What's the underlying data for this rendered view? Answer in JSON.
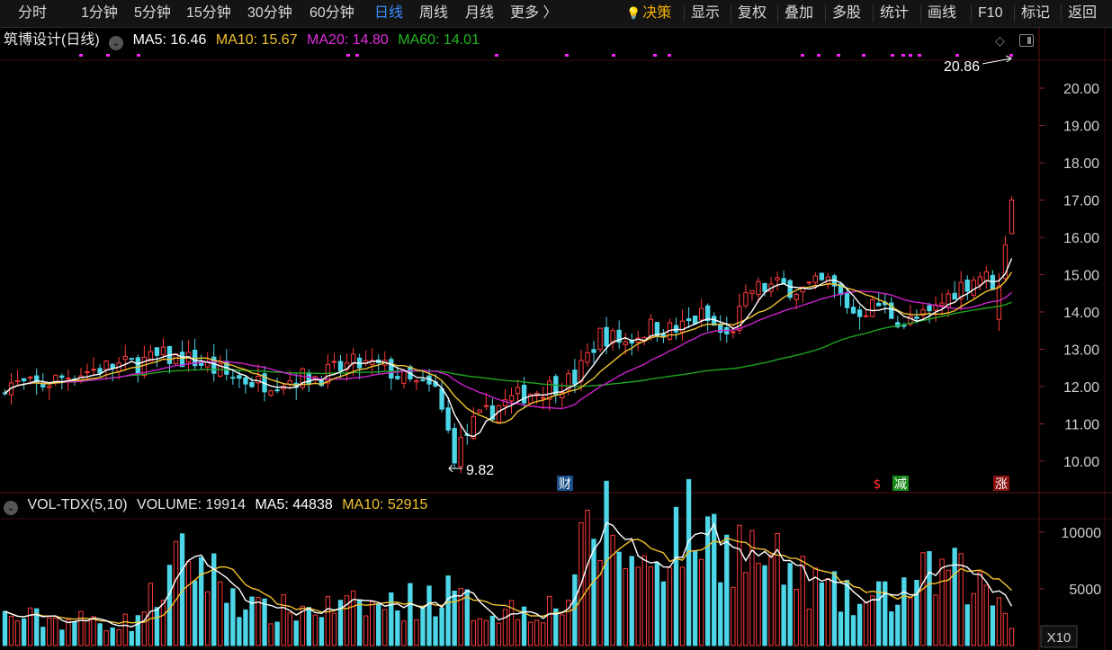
{
  "toolbar": {
    "left": [
      {
        "name": "tab-fenshi",
        "label": "分时"
      },
      {
        "name": "tab-1min",
        "label": "1分钟"
      },
      {
        "name": "tab-5min",
        "label": "5分钟"
      },
      {
        "name": "tab-15min",
        "label": "15分钟"
      },
      {
        "name": "tab-30min",
        "label": "30分钟"
      },
      {
        "name": "tab-60min",
        "label": "60分钟"
      },
      {
        "name": "tab-daily",
        "label": "日线",
        "active": true
      },
      {
        "name": "tab-weekly",
        "label": "周线"
      },
      {
        "name": "tab-monthly",
        "label": "月线"
      },
      {
        "name": "tab-more",
        "label": "更多 〉"
      }
    ],
    "right": [
      {
        "name": "decision-button",
        "label": "决策",
        "accent": true
      },
      {
        "name": "display-button",
        "label": "显示"
      },
      {
        "name": "adjust-button",
        "label": "复权"
      },
      {
        "name": "overlay-button",
        "label": "叠加"
      },
      {
        "name": "multi-stock-button",
        "label": "多股"
      },
      {
        "name": "stats-button",
        "label": "统计"
      },
      {
        "name": "draw-button",
        "label": "画线"
      },
      {
        "name": "f10-button",
        "label": "F10"
      },
      {
        "name": "mark-button",
        "label": "标记"
      },
      {
        "name": "back-button",
        "label": "返回"
      }
    ]
  },
  "price_legend": {
    "stock": "筑博设计(日线)",
    "ma5": "MA5: 16.46",
    "ma10": "MA10: 15.67",
    "ma20": "MA20: 14.80",
    "ma60": "MA60: 14.01"
  },
  "volume_legend": {
    "indicator": "VOL-TDX(5,10)",
    "volume": "VOLUME: 19914",
    "ma5": "MA5: 44838",
    "ma10": "MA10: 52915"
  },
  "colors": {
    "up": "#ff3b3b",
    "down": "#4dd6e8",
    "ma5": "#ffffff",
    "ma10": "#f2c230",
    "ma20": "#cc22cc",
    "ma60": "#1fa41f",
    "grid": "#3a1010",
    "axis_text": "#d0d0d0",
    "marker": "#ff22ff"
  },
  "chart_data": {
    "type": "candlestick",
    "price_axis": {
      "ticks": [
        "20.00",
        "19.00",
        "18.00",
        "17.00",
        "16.00",
        "15.00",
        "14.00",
        "13.00",
        "12.00",
        "11.00",
        "10.00"
      ],
      "range": [
        9.5,
        21.2
      ]
    },
    "volume_axis": {
      "ticks": [
        "10000",
        "5000"
      ],
      "range": [
        0,
        12000
      ],
      "unit_label": "X10"
    },
    "annotations": {
      "high": "20.86",
      "low": "9.82",
      "events": [
        "财",
        "$",
        "减",
        "涨"
      ]
    },
    "keyframes": [
      {
        "i": 0,
        "c": 12.1
      },
      {
        "i": 5,
        "c": 12.0
      },
      {
        "i": 10,
        "c": 12.3
      },
      {
        "i": 15,
        "c": 12.5
      },
      {
        "i": 20,
        "c": 12.6
      },
      {
        "i": 25,
        "c": 12.8
      },
      {
        "i": 30,
        "c": 12.7
      },
      {
        "i": 35,
        "c": 12.3
      },
      {
        "i": 40,
        "c": 12.1
      },
      {
        "i": 45,
        "c": 12.2
      },
      {
        "i": 50,
        "c": 12.3
      },
      {
        "i": 55,
        "c": 12.6
      },
      {
        "i": 60,
        "c": 12.5
      },
      {
        "i": 64,
        "c": 12.1
      },
      {
        "i": 68,
        "c": 11.9
      },
      {
        "i": 71,
        "c": 10.2
      },
      {
        "i": 74,
        "c": 11.0
      },
      {
        "i": 78,
        "c": 11.5
      },
      {
        "i": 82,
        "c": 11.8
      },
      {
        "i": 86,
        "c": 12.0
      },
      {
        "i": 90,
        "c": 12.2
      },
      {
        "i": 94,
        "c": 13.4
      },
      {
        "i": 98,
        "c": 13.2
      },
      {
        "i": 102,
        "c": 13.6
      },
      {
        "i": 106,
        "c": 13.5
      },
      {
        "i": 110,
        "c": 13.9
      },
      {
        "i": 114,
        "c": 13.3
      },
      {
        "i": 118,
        "c": 14.6
      },
      {
        "i": 122,
        "c": 14.7
      },
      {
        "i": 126,
        "c": 14.6
      },
      {
        "i": 130,
        "c": 14.8
      },
      {
        "i": 134,
        "c": 14.0
      },
      {
        "i": 138,
        "c": 14.2
      },
      {
        "i": 142,
        "c": 13.7
      },
      {
        "i": 146,
        "c": 13.9
      },
      {
        "i": 150,
        "c": 14.6
      },
      {
        "i": 154,
        "c": 15.0
      },
      {
        "i": 157,
        "c": 14.7
      },
      {
        "i": 158,
        "c": 15.8
      },
      {
        "i": 159,
        "c": 17.0
      }
    ],
    "volume_keyframes": [
      {
        "i": 0,
        "v": 2500
      },
      {
        "i": 20,
        "v": 2000
      },
      {
        "i": 29,
        "v": 8000
      },
      {
        "i": 32,
        "v": 6500
      },
      {
        "i": 40,
        "v": 3000
      },
      {
        "i": 60,
        "v": 3500
      },
      {
        "i": 70,
        "v": 4500
      },
      {
        "i": 75,
        "v": 3000
      },
      {
        "i": 88,
        "v": 3500
      },
      {
        "i": 92,
        "v": 9000
      },
      {
        "i": 95,
        "v": 11000
      },
      {
        "i": 100,
        "v": 6500
      },
      {
        "i": 107,
        "v": 10500
      },
      {
        "i": 115,
        "v": 9000
      },
      {
        "i": 120,
        "v": 7500
      },
      {
        "i": 125,
        "v": 6000
      },
      {
        "i": 135,
        "v": 3500
      },
      {
        "i": 140,
        "v": 4500
      },
      {
        "i": 148,
        "v": 6500
      },
      {
        "i": 153,
        "v": 5500
      },
      {
        "i": 157,
        "v": 4000
      },
      {
        "i": 159,
        "v": 2000
      }
    ],
    "bar_count": 160
  }
}
